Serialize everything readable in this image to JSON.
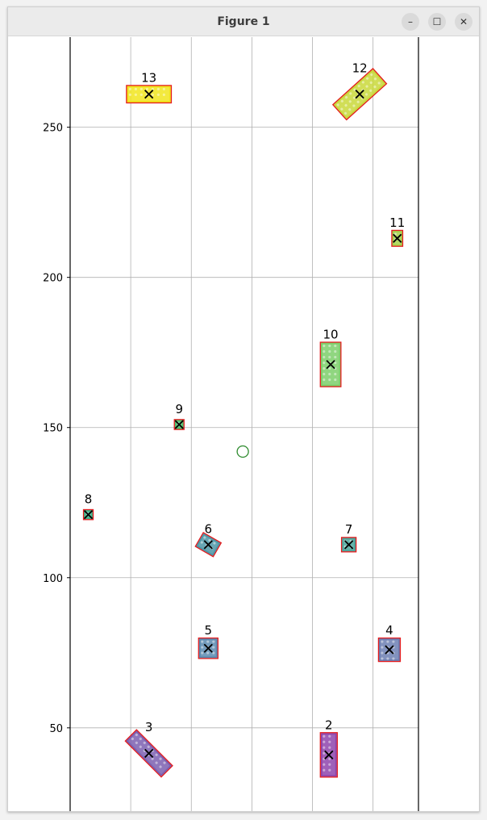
{
  "window": {
    "title": "Figure 1",
    "minimize_icon": "minimize-icon",
    "maximize_icon": "maximize-icon",
    "close_icon": "close-icon",
    "minimize_glyph": "–",
    "maximize_glyph": "☐",
    "close_glyph": "✕"
  },
  "chart_data": {
    "type": "scatter",
    "title": "",
    "xlabel": "",
    "ylabel": "",
    "xlim": [
      0,
      5.75
    ],
    "ylim": [
      22,
      280
    ],
    "x_grid": [
      1,
      2,
      3,
      4,
      5
    ],
    "yticks": [
      50,
      100,
      150,
      200,
      250
    ],
    "grid": true,
    "marker_color": "#000000",
    "bbox_color": "#e41a1c",
    "objects": [
      {
        "label": "2",
        "x": 4.27,
        "y": 41,
        "w": 0.24,
        "h": 14,
        "angle": 0,
        "color": "#8e44ad"
      },
      {
        "label": "3",
        "x": 1.3,
        "y": 41.5,
        "w": 0.8,
        "h": 4.5,
        "angle": 45,
        "color": "#7b5fb0"
      },
      {
        "label": "4",
        "x": 5.27,
        "y": 76,
        "w": 0.32,
        "h": 7,
        "angle": 0,
        "color": "#6c7fb3"
      },
      {
        "label": "5",
        "x": 2.28,
        "y": 76.5,
        "w": 0.28,
        "h": 6,
        "angle": 0,
        "color": "#5a89b0"
      },
      {
        "label": "6",
        "x": 2.28,
        "y": 111,
        "w": 0.3,
        "h": 4.5,
        "angle": 30,
        "color": "#4c97a7"
      },
      {
        "label": "7",
        "x": 4.6,
        "y": 111,
        "w": 0.2,
        "h": 4,
        "angle": 0,
        "color": "#4aa59a"
      },
      {
        "label": "8",
        "x": 0.3,
        "y": 121,
        "w": 0.12,
        "h": 2.5,
        "angle": 0,
        "color": "#40b48a"
      },
      {
        "label": "9",
        "x": 1.8,
        "y": 151,
        "w": 0.12,
        "h": 2.5,
        "angle": 0,
        "color": "#52c16d"
      },
      {
        "label": "10",
        "x": 4.3,
        "y": 171,
        "w": 0.3,
        "h": 14,
        "angle": 0,
        "color": "#7ccf6a"
      },
      {
        "label": "11",
        "x": 5.4,
        "y": 213,
        "w": 0.14,
        "h": 4.5,
        "angle": 0,
        "color": "#a5d24a"
      },
      {
        "label": "12",
        "x": 4.78,
        "y": 261,
        "w": 0.85,
        "h": 6,
        "angle": -42,
        "color": "#c9d83a"
      },
      {
        "label": "13",
        "x": 1.3,
        "y": 261,
        "w": 0.7,
        "h": 5,
        "angle": 0,
        "color": "#f1e51d"
      }
    ],
    "circle_marker": {
      "x": 2.85,
      "y": 142,
      "color": "#2e8b2e"
    }
  }
}
